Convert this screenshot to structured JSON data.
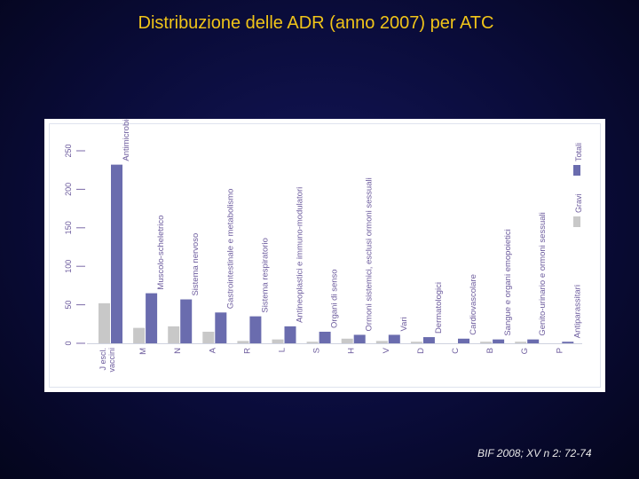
{
  "slide": {
    "title": "Distribuzione delle ADR (anno 2007) per ATC",
    "citation": "BIF 2008; XV n 2: 72-74"
  },
  "colors": {
    "background": "#0a0c3a",
    "title": "#f0c419",
    "gravi": "#c8c8c8",
    "totali": "#6a6cae"
  },
  "chart_data": {
    "type": "bar",
    "title": "",
    "xlabel": "",
    "ylabel": "",
    "ylim": [
      0,
      250
    ],
    "yticks": [
      "0",
      "50",
      "100",
      "150",
      "200",
      "250"
    ],
    "grid": false,
    "legend_position": "right",
    "categories": [
      "J escl. vaccini",
      "M",
      "N",
      "A",
      "R",
      "L",
      "S",
      "H",
      "V",
      "D",
      "C",
      "B",
      "G",
      "P"
    ],
    "category_labels": [
      "Antimicrobici per uso sistemico",
      "Muscolo-scheletrico",
      "Sistema nervoso",
      "Gastrointestinale e metabolismo",
      "Sistema respiratorio",
      "Antineoplastici e immuno-modulatori",
      "Organi di senso",
      "Ormoni sistemici, esclusi ormoni sessuali",
      "Vari",
      "Dermatologici",
      "Cardiovascolare",
      "Sangue e organi emopoietici",
      "Genito-urinario e ormoni sessuali",
      "Antiparassitari"
    ],
    "series": [
      {
        "name": "Gravi",
        "values": [
          52,
          20,
          22,
          15,
          3,
          5,
          2,
          6,
          3,
          2,
          0,
          2,
          2,
          0
        ]
      },
      {
        "name": "Totali",
        "values": [
          232,
          65,
          57,
          40,
          35,
          22,
          15,
          11,
          11,
          8,
          6,
          5,
          5,
          2
        ]
      }
    ]
  }
}
